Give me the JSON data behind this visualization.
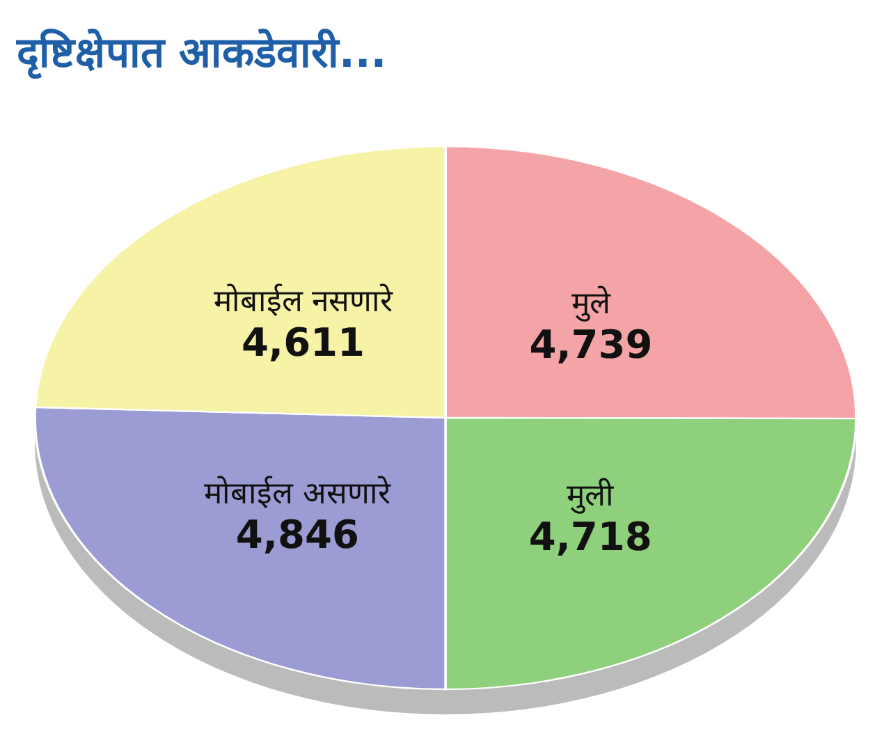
{
  "chart_data": {
    "type": "pie",
    "title": "दृष्टिक्षेपात आकडेवारी...",
    "categories": [
      "मुले",
      "मुली",
      "मोबाईल असणारे",
      "मोबाईल नसणारे"
    ],
    "values": [
      4739,
      4718,
      4846,
      4611
    ],
    "value_labels": [
      "4,739",
      "4,718",
      "4,846",
      "4,611"
    ],
    "colors": [
      "#f4a4a6",
      "#8fd07c",
      "#9c9cd4",
      "#f6f2a6"
    ]
  }
}
